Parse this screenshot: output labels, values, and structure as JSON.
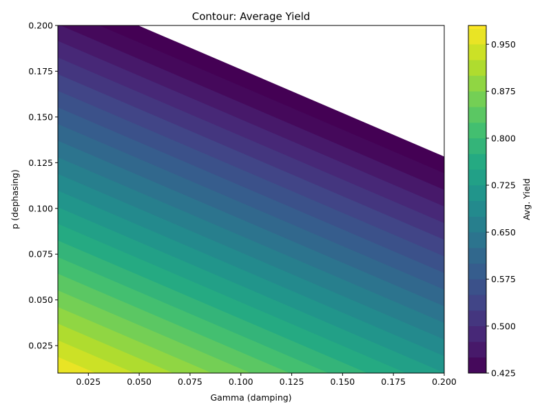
{
  "chart_data": {
    "type": "contour",
    "title": "Contour: Average Yield",
    "xlabel": "Gamma (damping)",
    "ylabel": "p (dephasing)",
    "colorbar_label": "Avg. Yield",
    "xlim": [
      0.01,
      0.2
    ],
    "ylim": [
      0.01,
      0.2
    ],
    "x_ticks": [
      0.025,
      0.05,
      0.075,
      0.1,
      0.125,
      0.15,
      0.175,
      0.2
    ],
    "x_tick_labels": [
      "0.025",
      "0.050",
      "0.075",
      "0.100",
      "0.125",
      "0.150",
      "0.175",
      "0.200"
    ],
    "y_ticks": [
      0.025,
      0.05,
      0.075,
      0.1,
      0.125,
      0.15,
      0.175,
      0.2
    ],
    "y_tick_labels": [
      "0.025",
      "0.050",
      "0.075",
      "0.100",
      "0.125",
      "0.150",
      "0.175",
      "0.200"
    ],
    "colorbar_range": [
      0.425,
      0.98
    ],
    "colorbar_ticks": [
      0.425,
      0.5,
      0.575,
      0.65,
      0.725,
      0.8,
      0.875,
      0.95
    ],
    "colorbar_tick_labels": [
      "0.425",
      "0.500",
      "0.575",
      "0.650",
      "0.725",
      "0.800",
      "0.875",
      "0.950"
    ],
    "level_step": 0.025,
    "colormap": "viridis",
    "surface": {
      "form": "linear",
      "value_at_min_gamma_min_p": 0.974,
      "slope_gamma": -1.31,
      "slope_p": -2.75
    }
  }
}
